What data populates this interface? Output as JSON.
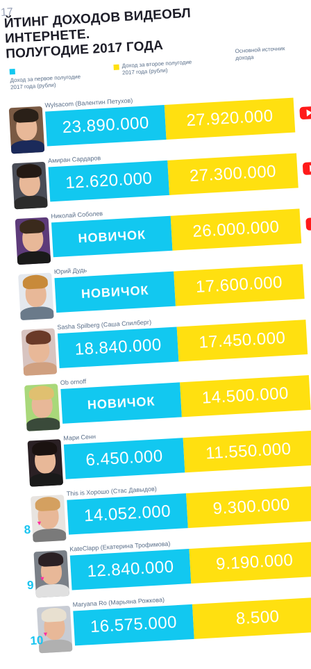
{
  "header": {
    "year_fragment": "17",
    "title_lines": [
      "ЙТИНГ ДОХОДОВ ВИДЕОБЛ",
      "ИНТЕРНЕТЕ.",
      "ПОЛУГОДИЕ 2017 ГОДА"
    ]
  },
  "legend": {
    "first_half": "Доход за первое полугодие 2017 года (рубли)",
    "second_half": "Доход за второе полугодие 2017 года (рубли)",
    "main_source": "Основной источник дохода",
    "colors": {
      "first_half": "#12c8f0",
      "second_half": "#ffe010"
    }
  },
  "rows": [
    {
      "name": "Wylsacom (Валентин Петухов)",
      "first_half": "23.890.000",
      "second_half": "27.920.000",
      "source_icon": "youtube-icon",
      "rank": "",
      "avatar_bg": "#7a5a44",
      "hair": "#2a2018",
      "shirt": "#1b2a5a"
    },
    {
      "name": "Амиран Сардаров",
      "first_half": "12.620.000",
      "second_half": "27.300.000",
      "source_icon": "youtube-icon",
      "rank": "",
      "avatar_bg": "#4a4d57",
      "hair": "#241a14",
      "shirt": "#2b2b2b"
    },
    {
      "name": "Николай Соболев",
      "first_half": "НОВИЧОК",
      "second_half": "26.000.000",
      "source_icon": "youtube-icon",
      "rank": "",
      "avatar_bg": "#5d3b7a",
      "hair": "#3a2a1c",
      "shirt": "#1a1a1a"
    },
    {
      "name": "Юрий Дудь",
      "first_half": "НОВИЧОК",
      "second_half": "17.600.000",
      "source_icon": "",
      "rank": "",
      "avatar_bg": "#e4e8ee",
      "hair": "#c88a3a",
      "shirt": "#6a7a8a"
    },
    {
      "name": "Sasha Spilberg (Саша Спилберг)",
      "first_half": "18.840.000",
      "second_half": "17.450.000",
      "source_icon": "",
      "rank": "",
      "avatar_bg": "#d8c4c0",
      "hair": "#6a3a28",
      "shirt": "#d0a080"
    },
    {
      "name": "Ob ornoff",
      "first_half": "НОВИЧОК",
      "second_half": "14.500.000",
      "source_icon": "",
      "rank": "",
      "avatar_bg": "#a9d87a",
      "hair": "#e0c070",
      "shirt": "#3a4a3a"
    },
    {
      "name": "Мари Сенн",
      "first_half": "6.450.000",
      "second_half": "11.550.000",
      "source_icon": "",
      "rank": "",
      "avatar_bg": "#2a2024",
      "hair": "#1a1210",
      "shirt": "#1a1a1a"
    },
    {
      "name": "This is Хорошо (Стас Давыдов)",
      "first_half": "14.052.000",
      "second_half": "9.300.000",
      "source_icon": "",
      "rank": "8",
      "avatar_bg": "#e8e4e0",
      "hair": "#d4a060",
      "shirt": "#7a7a7a"
    },
    {
      "name": "KateClapp (Екатерина Трофимова)",
      "first_half": "12.840.000",
      "second_half": "9.190.000",
      "source_icon": "",
      "rank": "9",
      "avatar_bg": "#7a8088",
      "hair": "#2a2024",
      "shirt": "#e0e0e0"
    },
    {
      "name": "Maryana Ro (Марьяна Рожкова)",
      "first_half": "16.575.000",
      "second_half": "8.500",
      "source_icon": "",
      "rank": "10",
      "avatar_bg": "#c8ccd4",
      "hair": "#e8e0d0",
      "shirt": "#b0b0b0"
    }
  ]
}
